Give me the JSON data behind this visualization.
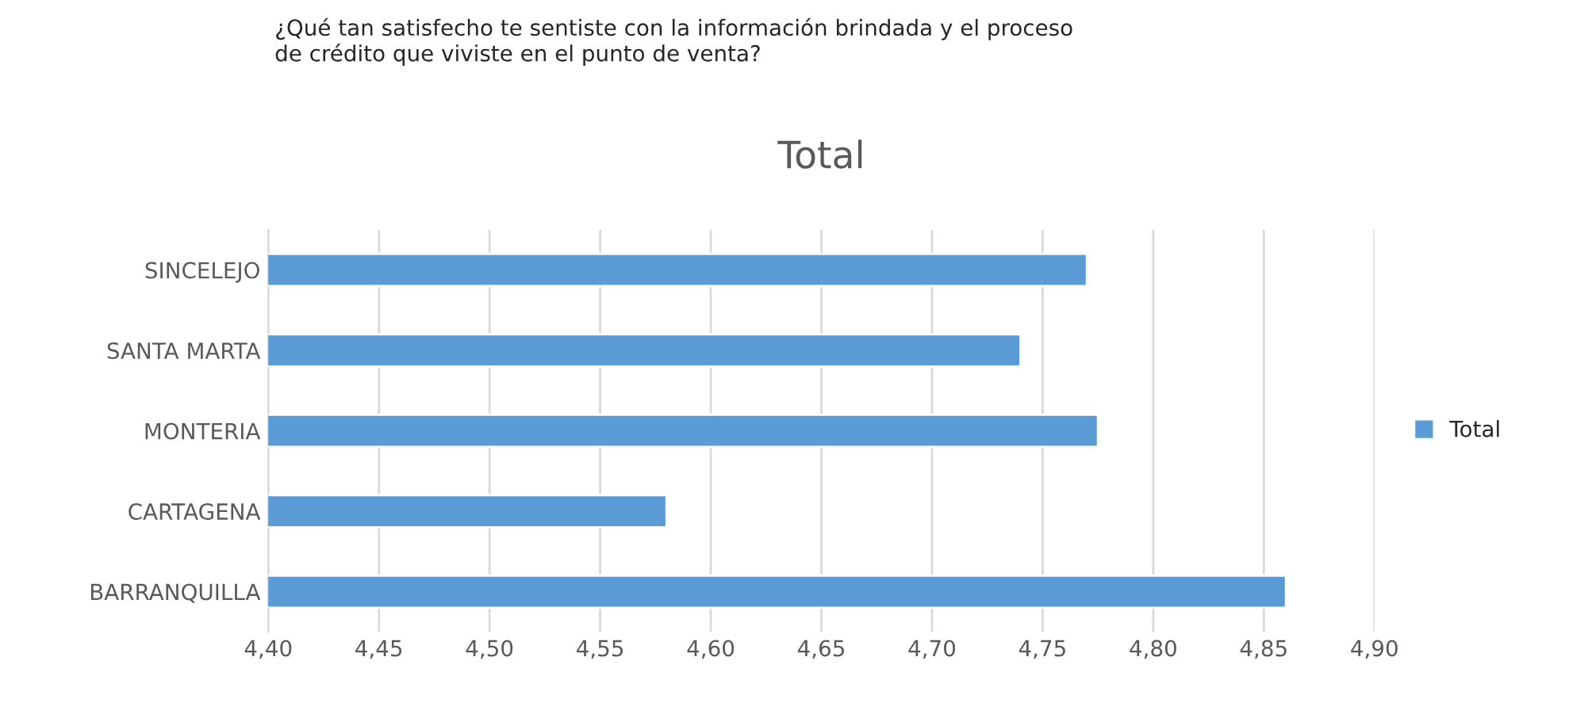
{
  "chart_data": {
    "type": "bar",
    "orientation": "horizontal",
    "title": "Total",
    "subtitle": "¿Qué tan satisfecho te sentiste con la información brindada y el proceso\nde crédito que viviste en el punto de venta?",
    "categories": [
      "SINCELEJO",
      "SANTA MARTA",
      "MONTERIA",
      "CARTAGENA",
      "BARRANQUILLA"
    ],
    "series": [
      {
        "name": "Total",
        "color": "#5b9bd5",
        "values": [
          4.77,
          4.74,
          4.775,
          4.58,
          4.86
        ]
      }
    ],
    "xlim": [
      4.4,
      4.9
    ],
    "xticks": [
      {
        "value": 4.4,
        "label": "4,40"
      },
      {
        "value": 4.45,
        "label": "4,45"
      },
      {
        "value": 4.5,
        "label": "4,50"
      },
      {
        "value": 4.55,
        "label": "4,55"
      },
      {
        "value": 4.6,
        "label": "4,60"
      },
      {
        "value": 4.65,
        "label": "4,65"
      },
      {
        "value": 4.7,
        "label": "4,70"
      },
      {
        "value": 4.75,
        "label": "4,75"
      },
      {
        "value": 4.8,
        "label": "4,80"
      },
      {
        "value": 4.85,
        "label": "4,85"
      },
      {
        "value": 4.9,
        "label": "4,90"
      }
    ],
    "grid": "x",
    "legend": "right"
  }
}
